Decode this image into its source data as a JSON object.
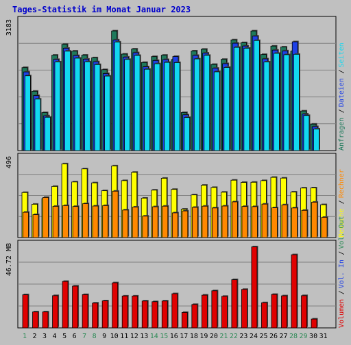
{
  "title": "Tages-Statistik im Monat Januar 2023",
  "colors": {
    "background": "#c0c0c0",
    "title": "#0000cc",
    "plot_bg": "#c0c0c0",
    "anfragen": "#1f7a5c",
    "dateien": "#1e40e6",
    "seiten": "#12d8f0",
    "besuche": "#ffff00",
    "rechner": "#ff8800",
    "volumen": "#e00000",
    "weekend_label": "#2e8b57",
    "weekday_label": "#000000"
  },
  "chart_data": [
    {
      "type": "bar",
      "ylabel": "3183",
      "ylim": [
        0,
        3183
      ],
      "categories": [
        "1",
        "2",
        "3",
        "4",
        "5",
        "6",
        "7",
        "8",
        "9",
        "10",
        "11",
        "12",
        "13",
        "14",
        "15",
        "16",
        "17",
        "18",
        "19",
        "20",
        "21",
        "22",
        "23",
        "24",
        "25",
        "26",
        "27",
        "28",
        "29",
        "30",
        "31"
      ],
      "legend_right": [
        "Anfragen",
        "Dateien",
        "Seiten"
      ],
      "series": [
        {
          "name": "Anfragen",
          "values": [
            2208,
            1579,
            1011,
            2538,
            2826,
            2646,
            2539,
            2469,
            2153,
            3183,
            2567,
            2701,
            2344,
            2500,
            2537,
            2422,
            1012,
            2649,
            2696,
            2292,
            2427,
            2945,
            2871,
            3183,
            2556,
            2780,
            2755,
            2646,
            1053,
            704,
            0
          ]
        },
        {
          "name": "Dateien",
          "values": [
            2092,
            1463,
            925,
            2424,
            2722,
            2528,
            2433,
            2364,
            2049,
            2944,
            2488,
            2604,
            2229,
            2397,
            2422,
            2503,
            952,
            2532,
            2593,
            2192,
            2313,
            2857,
            2783,
            3045,
            2440,
            2673,
            2653,
            2894,
            972,
            638,
            0
          ]
        },
        {
          "name": "Seiten",
          "values": [
            1990,
            1370,
            887,
            2359,
            2645,
            2459,
            2363,
            2289,
            1983,
            2889,
            2425,
            2531,
            2164,
            2310,
            2347,
            2341,
            880,
            2439,
            2533,
            2095,
            2212,
            2747,
            2723,
            2928,
            2357,
            2587,
            2551,
            2562,
            934,
            574,
            0
          ]
        }
      ]
    },
    {
      "type": "bar",
      "ylabel": "496",
      "ylim": [
        0,
        496
      ],
      "categories": [
        "1",
        "2",
        "3",
        "4",
        "5",
        "6",
        "7",
        "8",
        "9",
        "10",
        "11",
        "12",
        "13",
        "14",
        "15",
        "16",
        "17",
        "18",
        "19",
        "20",
        "21",
        "22",
        "23",
        "24",
        "25",
        "26",
        "27",
        "28",
        "29",
        "30",
        "31"
      ],
      "legend_right": [
        "Besuche",
        "Rechner"
      ],
      "series": [
        {
          "name": "Besuche",
          "values": [
            303,
            224,
            262,
            344,
            496,
            374,
            462,
            368,
            315,
            482,
            383,
            439,
            265,
            319,
            399,
            324,
            191,
            287,
            352,
            337,
            305,
            386,
            371,
            372,
            383,
            405,
            400,
            306,
            333,
            334,
            221
          ]
        },
        {
          "name": "Rechner",
          "values": [
            170,
            154,
            270,
            210,
            215,
            209,
            228,
            212,
            215,
            312,
            185,
            205,
            144,
            207,
            211,
            166,
            179,
            203,
            211,
            199,
            212,
            240,
            209,
            208,
            225,
            200,
            220,
            199,
            183,
            238,
            136
          ]
        }
      ]
    },
    {
      "type": "bar",
      "ylabel": "46.72 MB",
      "ylim": [
        0,
        46.72
      ],
      "categories": [
        "1",
        "2",
        "3",
        "4",
        "5",
        "6",
        "7",
        "8",
        "9",
        "10",
        "11",
        "12",
        "13",
        "14",
        "15",
        "16",
        "17",
        "18",
        "19",
        "20",
        "21",
        "22",
        "23",
        "24",
        "25",
        "26",
        "27",
        "28",
        "29",
        "30",
        "31"
      ],
      "legend_right": [
        "Volumen",
        "Vol. In",
        "Vol. Out"
      ],
      "series": [
        {
          "name": "Volumen",
          "values": [
            19.1,
            9.2,
            9.2,
            18.6,
            26.8,
            24.1,
            19.2,
            14.3,
            15.6,
            26.0,
            18.4,
            18.4,
            15.5,
            15.1,
            15.5,
            19.7,
            8.9,
            13.5,
            18.9,
            21.4,
            18.2,
            27.8,
            22.2,
            46.72,
            14.5,
            19.3,
            18.5,
            42.2,
            18.6,
            5.1,
            0
          ]
        }
      ]
    }
  ]
}
